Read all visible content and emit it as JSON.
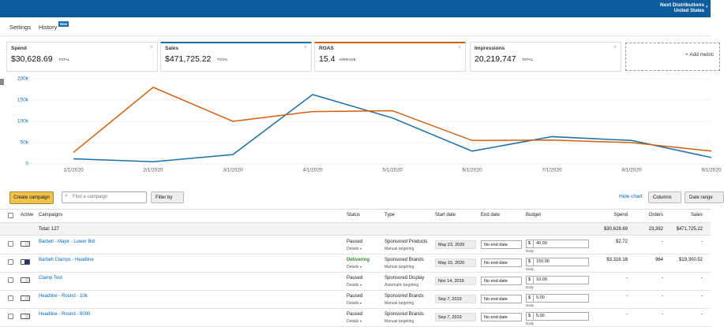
{
  "header": {
    "account": "Next Distributions",
    "region": "United States"
  },
  "nav": {
    "tabs": [
      "Settings",
      "History"
    ],
    "badge": "New"
  },
  "metrics": [
    {
      "name": "Spend",
      "value": "$30,628.69",
      "suffix": "TOTAL"
    },
    {
      "name": "Sales",
      "value": "$471,725.22",
      "suffix": "TOTAL"
    },
    {
      "name": "ROAS",
      "value": "15.4",
      "suffix": "AVERAGE"
    },
    {
      "name": "Impressions",
      "value": "20,219,747",
      "suffix": "TOTAL"
    }
  ],
  "add_metric": "+ Add metric",
  "chart_data": {
    "type": "line",
    "categories": [
      "1/1/2020",
      "2/1/2020",
      "3/1/2020",
      "4/1/2020",
      "5/1/2020",
      "6/1/2020",
      "7/1/2020",
      "8/1/2020",
      "9/1/2020"
    ],
    "series": [
      {
        "color": "#1a6fa6",
        "values": [
          12000,
          5000,
          22000,
          163000,
          108000,
          30000,
          64000,
          55000,
          15000
        ]
      },
      {
        "color": "#d2600f",
        "values": [
          27000,
          180000,
          100000,
          123000,
          125000,
          55000,
          56000,
          50000,
          30000
        ]
      }
    ],
    "ylim": [
      0,
      200000
    ],
    "yticks": [
      0,
      {
        "value": 50000,
        "label": "50k"
      },
      {
        "value": 100000,
        "label": "100k"
      },
      {
        "value": 150000,
        "label": "150k"
      },
      {
        "value": 200000,
        "label": "200k"
      }
    ],
    "grid": true
  },
  "toolbar": {
    "create": "Create campaign",
    "search": "Find a campaign",
    "filter": "Filter by",
    "hide_chart": "Hide chart",
    "columns": "Columns",
    "date_range": "Date range"
  },
  "table": {
    "columns": [
      "Active",
      "Campaigns",
      "Status",
      "Type",
      "Start date",
      "End date",
      "Budget",
      "Spend",
      "Orders",
      "Sales"
    ],
    "total": {
      "label": "Total: 127",
      "spend": "$30,628.69",
      "orders": "23,392",
      "sales": "$471,725.22"
    },
    "rows": [
      {
        "active": false,
        "name": "Barbell - Major - Lower Bid",
        "status": "Paused",
        "details": "Details",
        "type": "Sponsored Products",
        "targeting": "Manual targeting",
        "start": "May 23, 2020",
        "end": "No end date",
        "currency": "$",
        "budget": "40.00",
        "period": "Daily",
        "spend": "$2.72",
        "orders": "-",
        "sales": "-"
      },
      {
        "active": true,
        "name": "Barbell Clamps - Headline",
        "status": "Delivering",
        "details": "Details",
        "type": "Sponsored Brands",
        "targeting": "Manual targeting",
        "start": "May 15, 2020",
        "end": "No end date",
        "currency": "$",
        "budget": "150.00",
        "period": "Daily",
        "spend": "$3,316.18",
        "orders": "964",
        "sales": "$19,300.52"
      },
      {
        "active": false,
        "name": "Clamp Test",
        "status": "Paused",
        "details": "Details",
        "type": "Sponsored Display",
        "targeting": "Automatic targeting",
        "start": "Nov 14, 2019",
        "end": "No end date",
        "currency": "$",
        "budget": "10.00",
        "period": "Daily",
        "spend": "-",
        "orders": "-",
        "sales": "-"
      },
      {
        "active": false,
        "name": "Headline - Round - 10k",
        "status": "Paused",
        "details": "Details",
        "type": "Sponsored Brands",
        "targeting": "Manual targeting",
        "start": "Sep 7, 2019",
        "end": "No end date",
        "currency": "$",
        "budget": "5.00",
        "period": "Daily",
        "spend": "-",
        "orders": "-",
        "sales": "-"
      },
      {
        "active": false,
        "name": "Headline - Round - 9000",
        "status": "Paused",
        "details": "Details",
        "type": "Sponsored Brands",
        "targeting": "Manual targeting",
        "start": "Sep 7, 2019",
        "end": "No end date",
        "currency": "$",
        "budget": "5.00",
        "period": "Daily",
        "spend": "-",
        "orders": "-",
        "sales": "-"
      }
    ]
  }
}
